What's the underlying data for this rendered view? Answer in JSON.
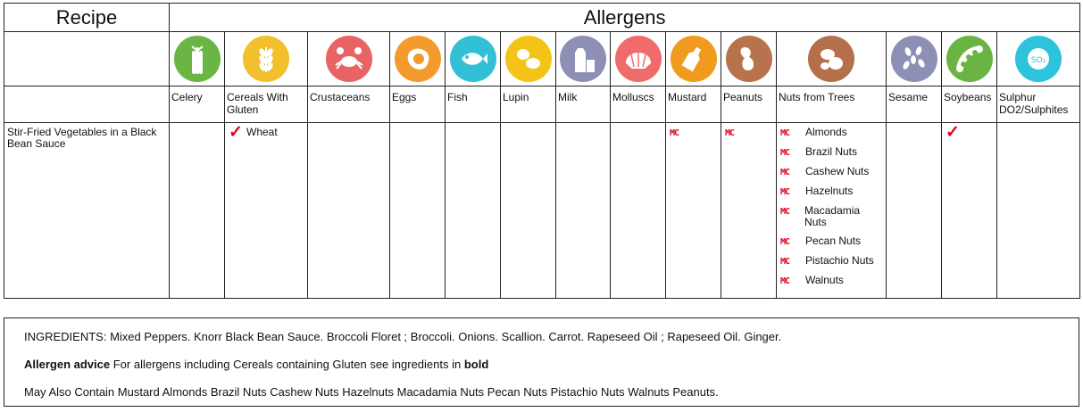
{
  "header": {
    "recipe": "Recipe",
    "allergens": "Allergens"
  },
  "columns": [
    {
      "name": "Celery",
      "color": "#6bb545",
      "icon": "celery-icon"
    },
    {
      "name": "Cereals With Gluten",
      "color": "#f2c02c",
      "icon": "wheat-icon"
    },
    {
      "name": "Crustaceans",
      "color": "#e86464",
      "icon": "crab-icon"
    },
    {
      "name": "Eggs",
      "color": "#f49b2e",
      "icon": "egg-icon"
    },
    {
      "name": "Fish",
      "color": "#33bfd6",
      "icon": "fish-icon"
    },
    {
      "name": "Lupin",
      "color": "#f3c417",
      "icon": "lupin-icon"
    },
    {
      "name": "Milk",
      "color": "#8e8fb6",
      "icon": "milk-icon"
    },
    {
      "name": "Molluscs",
      "color": "#f06c6c",
      "icon": "shell-icon"
    },
    {
      "name": "Mustard",
      "color": "#f09b1e",
      "icon": "mustard-icon"
    },
    {
      "name": "Peanuts",
      "color": "#b8734c",
      "icon": "peanut-icon"
    },
    {
      "name": "Nuts from Trees",
      "color": "#b5704b",
      "icon": "nuts-icon"
    },
    {
      "name": "Sesame",
      "color": "#8c90b5",
      "icon": "sesame-icon"
    },
    {
      "name": "Soybeans",
      "color": "#6ab443",
      "icon": "soybean-icon"
    },
    {
      "name": "Sulphur DO2/Sulphites",
      "color": "#2ec3dc",
      "icon": "sulphur-icon"
    }
  ],
  "row": {
    "recipe": "Stir-Fried Vegetables in a Black Bean Sauce",
    "tick_symbol": "✓",
    "mc_symbol": "MC",
    "cereals": [
      {
        "mark": "tick",
        "label": "Wheat"
      }
    ],
    "mustard": [
      {
        "mark": "mc",
        "label": ""
      }
    ],
    "peanuts": [
      {
        "mark": "mc",
        "label": ""
      }
    ],
    "nuts": [
      {
        "mark": "mc",
        "label": "Almonds"
      },
      {
        "mark": "mc",
        "label": "Brazil Nuts"
      },
      {
        "mark": "mc",
        "label": "Cashew Nuts"
      },
      {
        "mark": "mc",
        "label": "Hazelnuts"
      },
      {
        "mark": "mc",
        "label": "Macadamia Nuts"
      },
      {
        "mark": "mc",
        "label": "Pecan Nuts"
      },
      {
        "mark": "mc",
        "label": "Pistachio Nuts"
      },
      {
        "mark": "mc",
        "label": "Walnuts"
      }
    ],
    "soybeans": [
      {
        "mark": "tick",
        "label": ""
      }
    ]
  },
  "info": {
    "ingredients": "INGREDIENTS:  Mixed Peppers. Knorr Black Bean Sauce. Broccoli Floret ; Broccoli. Onions. Scallion. Carrot. Rapeseed Oil ; Rapeseed Oil. Ginger.",
    "advice_bold": "Allergen advice",
    "advice_text": " For allergens  including Cereals containing Gluten  see ingredients in ",
    "advice_tail": "bold",
    "may_contain": "May Also Contain Mustard  Almonds  Brazil Nuts  Cashew Nuts  Hazelnuts  Macadamia Nuts  Pecan Nuts  Pistachio Nuts  Walnuts  Peanuts."
  }
}
